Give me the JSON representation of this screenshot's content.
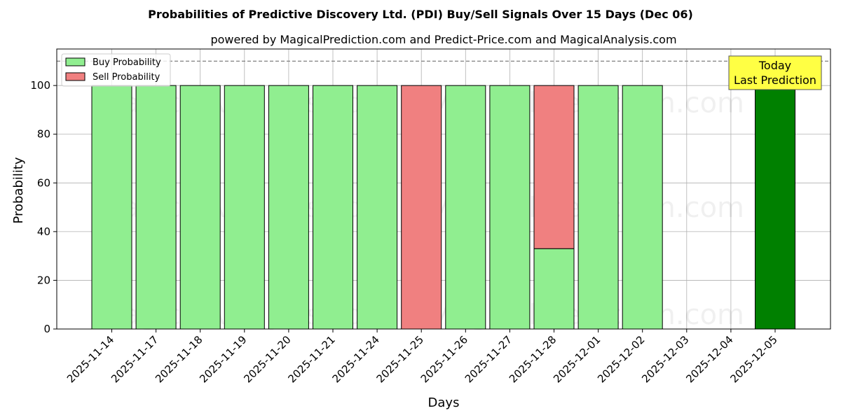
{
  "chart_data": {
    "type": "bar",
    "title": "Probabilities of Predictive Discovery Ltd. (PDI) Buy/Sell Signals Over 15 Days (Dec 06)",
    "subtitle": "powered by MagicalPrediction.com and Predict-Price.com and MagicalAnalysis.com",
    "xlabel": "Days",
    "ylabel": "Probability",
    "ylim": [
      0,
      115
    ],
    "yticks": [
      0,
      20,
      40,
      60,
      80,
      100
    ],
    "categories": [
      "2025-11-14",
      "2025-11-17",
      "2025-11-18",
      "2025-11-19",
      "2025-11-20",
      "2025-11-21",
      "2025-11-24",
      "2025-11-25",
      "2025-11-26",
      "2025-11-27",
      "2025-11-28",
      "2025-12-01",
      "2025-12-02",
      "2025-12-03",
      "2025-12-04",
      "2025-12-05"
    ],
    "series": [
      {
        "name": "Buy Probability",
        "color": "#90ee90",
        "values": [
          100,
          100,
          100,
          100,
          100,
          100,
          100,
          0,
          100,
          100,
          33,
          100,
          100,
          null,
          null,
          100
        ]
      },
      {
        "name": "Sell Probability",
        "color": "#f08080",
        "values": [
          0,
          0,
          0,
          0,
          0,
          0,
          0,
          100,
          0,
          0,
          67,
          0,
          0,
          null,
          null,
          0
        ]
      }
    ],
    "highlight": {
      "category": "2025-12-05",
      "color": "#008000"
    },
    "reference_line": {
      "y": 110,
      "style": "dashed"
    },
    "annotation": {
      "lines": [
        "Today",
        "Last Prediction"
      ],
      "background": "#ffff44"
    },
    "watermarks": [
      "MagicalAnalysis.com",
      "MagicalPrediction.com"
    ],
    "grid": true,
    "legend_position": "top-left"
  }
}
